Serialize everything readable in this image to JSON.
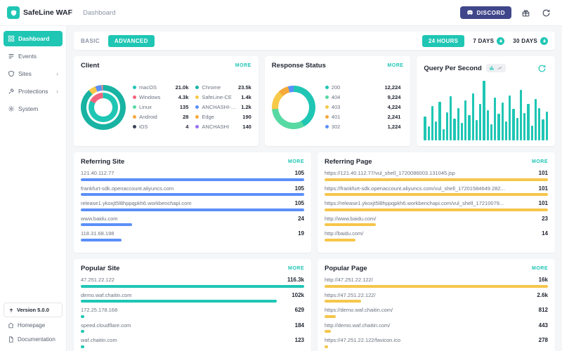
{
  "header": {
    "app_title": "SafeLine WAF",
    "page_title": "Dashboard",
    "discord_label": "DISCORD"
  },
  "sidebar": {
    "items": [
      {
        "label": "Dashboard",
        "active": true
      },
      {
        "label": "Events",
        "active": false
      },
      {
        "label": "Sites",
        "active": false,
        "expandable": true
      },
      {
        "label": "Protections",
        "active": false,
        "expandable": true
      },
      {
        "label": "System",
        "active": false
      }
    ],
    "version_label": "Version 5.0.0",
    "homepage_label": "Homepage",
    "docs_label": "Documentation"
  },
  "toolbar": {
    "basic_label": "BASIC",
    "advanced_label": "ADVANCED",
    "range_24h": "24 HOURS",
    "range_7d": "7 DAYS",
    "range_30d": "30 DAYS"
  },
  "accent_color": "#1fc6b4",
  "cards": {
    "client": {
      "title": "Client",
      "more_label": "MORE",
      "os": [
        {
          "label": "macOS",
          "value": "21.0k",
          "color": "#1fc6b4"
        },
        {
          "label": "Windows",
          "value": "4.3k",
          "color": "#f0647e"
        },
        {
          "label": "Linux",
          "value": "135",
          "color": "#57d9a3"
        },
        {
          "label": "Android",
          "value": "28",
          "color": "#f5a93b"
        },
        {
          "label": "iOS",
          "value": "4",
          "color": "#3b4254"
        }
      ],
      "browsers": [
        {
          "label": "Chrome",
          "value": "23.5k",
          "color": "#18b3a2"
        },
        {
          "label": "SafeLine-CE",
          "value": "1.4k",
          "color": "#f7c948"
        },
        {
          "label": "ANCHASHI-SCAN",
          "value": "1.2k",
          "color": "#5b8ff9"
        },
        {
          "label": "Edge",
          "value": "190",
          "color": "#f5a93b"
        },
        {
          "label": "ANCHASHI",
          "value": "140",
          "color": "#9a6ff2"
        }
      ]
    },
    "status": {
      "title": "Response Status",
      "more_label": "MORE",
      "items": [
        {
          "label": "200",
          "value": "12,224",
          "color": "#1fc6b4"
        },
        {
          "label": "404",
          "value": "9,224",
          "color": "#57d9a3"
        },
        {
          "label": "403",
          "value": "4,224",
          "color": "#f7c948"
        },
        {
          "label": "401",
          "value": "2,241",
          "color": "#f5a93b"
        },
        {
          "label": "302",
          "value": "1,224",
          "color": "#5b8ff9"
        }
      ]
    },
    "qps": {
      "title": "Query Per Second",
      "color": "#1fc6b4",
      "values": [
        38,
        22,
        55,
        30,
        62,
        18,
        45,
        70,
        35,
        52,
        28,
        64,
        40,
        75,
        32,
        58,
        95,
        48,
        26,
        68,
        42,
        60,
        30,
        72,
        50,
        36,
        80,
        44,
        58,
        24,
        66,
        52,
        34,
        46
      ]
    },
    "referring_site": {
      "title": "Referring Site",
      "more_label": "MORE",
      "color": "#5b8ff9",
      "items": [
        {
          "label": "121.40.112.77",
          "value": "105"
        },
        {
          "label": "frankfurt-sdk.openaccount.aliyuncs.com",
          "value": "105"
        },
        {
          "label": "release1.ykoxjt5l8hppqpkh6.workbenchapi.com",
          "value": "105"
        },
        {
          "label": "www.baidu.com",
          "value": "24"
        },
        {
          "label": "118.31.68.198",
          "value": "19"
        }
      ]
    },
    "referring_page": {
      "title": "Referring Page",
      "more_label": "MORE",
      "color": "#f6c64b",
      "items": [
        {
          "label": "https://121.40.112.77/vul_shell_1720086003.131045.jsp",
          "value": "101"
        },
        {
          "label": "https://frankfurt-sdk.openaccount.aliyuncs.com/vul_shell_17201584649.282...",
          "value": "101"
        },
        {
          "label": "https://release1.ykoxjt5l8hppqpkh6.workbenchapi.com/vul_shell_17210079...",
          "value": "101"
        },
        {
          "label": "http://www.baidu.com/",
          "value": "23"
        },
        {
          "label": "http://baidu.com/",
          "value": "14"
        }
      ]
    },
    "popular_site": {
      "title": "Popular Site",
      "more_label": "MORE",
      "color": "#1fc6b4",
      "items": [
        {
          "label": "47.251.22.122",
          "value": "116.3k"
        },
        {
          "label": "demo.waf.chaitin.com",
          "value": "102k"
        },
        {
          "label": "172.25.178.168",
          "value": "629"
        },
        {
          "label": "speed.cloudflare.com",
          "value": "184"
        },
        {
          "label": "waf.chaitin.com",
          "value": "123"
        }
      ]
    },
    "popular_page": {
      "title": "Popular Page",
      "more_label": "MORE",
      "color": "#f6c64b",
      "items": [
        {
          "label": "http://47.251.22.122/",
          "value": "16k"
        },
        {
          "label": "https://47.251.22.122/",
          "value": "2.6k"
        },
        {
          "label": "https://demo.waf.chaitin.com/",
          "value": "812"
        },
        {
          "label": "http://demo.waf.chaitin.com/",
          "value": "443"
        },
        {
          "label": "https://47.251.22.122/favicon.ico",
          "value": "278"
        }
      ]
    }
  }
}
